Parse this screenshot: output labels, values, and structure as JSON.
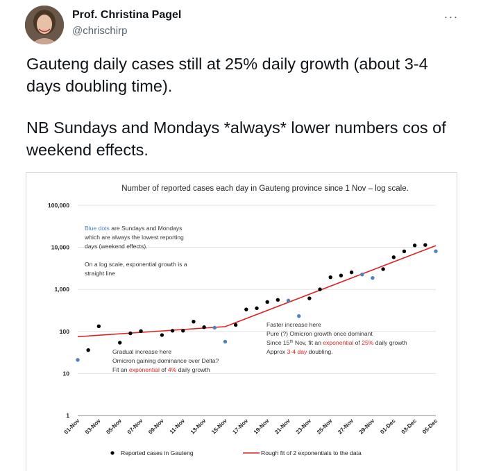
{
  "tweet": {
    "author_name": "Prof. Christina Pagel",
    "author_handle": "@chrischirp",
    "more_label": "···",
    "paragraph_1": "Gauteng daily cases still at 25% daily growth (about 3-4 days doubling time).",
    "paragraph_2": "NB Sundays and Mondays *always* lower numbers cos of weekend effects."
  },
  "colors": {
    "black_dots": "#000000",
    "blue_dots": "#4f81bd",
    "fit_line": "#e02020",
    "accent_text": "#e02020"
  },
  "chart_data": {
    "type": "scatter",
    "title": "Number of reported cases each day in Gauteng province since 1 Nov – log scale.",
    "y_scale": "log",
    "ylim": [
      1,
      100000
    ],
    "y_ticks": [
      "1",
      "10",
      "100",
      "1,000",
      "10,000",
      "100,000"
    ],
    "x_tick_labels": [
      "01-Nov",
      "03-Nov",
      "05-Nov",
      "07-Nov",
      "09-Nov",
      "11-Nov",
      "13-Nov",
      "15-Nov",
      "17-Nov",
      "19-Nov",
      "21-Nov",
      "23-Nov",
      "25-Nov",
      "27-Nov",
      "29-Nov",
      "01-Dec",
      "03-Dec",
      "05-Dec"
    ],
    "x": [
      "01-Nov",
      "02-Nov",
      "03-Nov",
      "04-Nov",
      "05-Nov",
      "06-Nov",
      "07-Nov",
      "08-Nov",
      "09-Nov",
      "10-Nov",
      "11-Nov",
      "12-Nov",
      "13-Nov",
      "14-Nov",
      "15-Nov",
      "16-Nov",
      "17-Nov",
      "18-Nov",
      "19-Nov",
      "20-Nov",
      "21-Nov",
      "22-Nov",
      "23-Nov",
      "24-Nov",
      "25-Nov",
      "26-Nov",
      "27-Nov",
      "28-Nov",
      "29-Nov",
      "30-Nov",
      "01-Dec",
      "02-Dec",
      "03-Dec",
      "04-Dec",
      "05-Dec"
    ],
    "series": [
      {
        "name": "Reported cases in Gauteng",
        "points": [
          {
            "x": "01-Nov",
            "y": 21,
            "weekend": true
          },
          {
            "x": "02-Nov",
            "y": 36,
            "weekend": false
          },
          {
            "x": "03-Nov",
            "y": 133,
            "weekend": false
          },
          {
            "x": "05-Nov",
            "y": 54,
            "weekend": false
          },
          {
            "x": "06-Nov",
            "y": 90,
            "weekend": false
          },
          {
            "x": "07-Nov",
            "y": 102,
            "weekend": false
          },
          {
            "x": "09-Nov",
            "y": 82,
            "weekend": false
          },
          {
            "x": "10-Nov",
            "y": 104,
            "weekend": false
          },
          {
            "x": "11-Nov",
            "y": 104,
            "weekend": false
          },
          {
            "x": "12-Nov",
            "y": 171,
            "weekend": false
          },
          {
            "x": "13-Nov",
            "y": 126,
            "weekend": false
          },
          {
            "x": "14-Nov",
            "y": 123,
            "weekend": true
          },
          {
            "x": "15-Nov",
            "y": 57,
            "weekend": true
          },
          {
            "x": "16-Nov",
            "y": 143,
            "weekend": false
          },
          {
            "x": "17-Nov",
            "y": 334,
            "weekend": false
          },
          {
            "x": "18-Nov",
            "y": 356,
            "weekend": false
          },
          {
            "x": "19-Nov",
            "y": 502,
            "weekend": false
          },
          {
            "x": "20-Nov",
            "y": 563,
            "weekend": false
          },
          {
            "x": "21-Nov",
            "y": 542,
            "weekend": true
          },
          {
            "x": "22-Nov",
            "y": 232,
            "weekend": true
          },
          {
            "x": "23-Nov",
            "y": 613,
            "weekend": false
          },
          {
            "x": "24-Nov",
            "y": 1003,
            "weekend": false
          },
          {
            "x": "25-Nov",
            "y": 1945,
            "weekend": false
          },
          {
            "x": "26-Nov",
            "y": 2141,
            "weekend": false
          },
          {
            "x": "27-Nov",
            "y": 2543,
            "weekend": false
          },
          {
            "x": "28-Nov",
            "y": 2262,
            "weekend": true
          },
          {
            "x": "29-Nov",
            "y": 1875,
            "weekend": true
          },
          {
            "x": "30-Nov",
            "y": 3038,
            "weekend": false
          },
          {
            "x": "01-Dec",
            "y": 5833,
            "weekend": false
          },
          {
            "x": "02-Dec",
            "y": 8044,
            "weekend": false
          },
          {
            "x": "03-Dec",
            "y": 11125,
            "weekend": false
          },
          {
            "x": "04-Dec",
            "y": 11373,
            "weekend": false
          },
          {
            "x": "05-Dec",
            "y": 8090,
            "weekend": true
          }
        ]
      },
      {
        "name": "Rough fit of 2 exponentials to the data",
        "line": [
          {
            "x": "01-Nov",
            "y": 75
          },
          {
            "x": "15-Nov",
            "y": 130
          },
          {
            "x": "05-Dec",
            "y": 11000
          }
        ]
      }
    ],
    "annotations": {
      "blue_note": {
        "line1_blue": "Blue dots",
        "line1_rest": " are Sundays and Mondays",
        "line2": "which are always the lowest reporting",
        "line3": "days (weekend effects)."
      },
      "log_note": {
        "line1": "On a log scale, exponential growth is a",
        "line2": "straight line"
      },
      "gradual_note": {
        "line1": "Gradual increase here",
        "line2": "Omicron gaining dominance over Delta?",
        "line3_a": "Fit an ",
        "line3_b": "exponential",
        "line3_c": " of ",
        "line3_d": "4%",
        "line3_e": " daily growth"
      },
      "faster_note": {
        "line1": "Faster increase here",
        "line2": "Pure (?) Omicron growth once dominant",
        "line3_a": "Since 15",
        "line3_sup": "th",
        "line3_b": " Nov, fit an ",
        "line3_c": "exponential",
        "line3_d": " of ",
        "line3_e": "25%",
        "line3_f": " daily growth",
        "line4_a": "Approx ",
        "line4_b": "3-4 day",
        "line4_c": " doubling."
      }
    },
    "legend": {
      "position": "bottom",
      "items": [
        "Reported cases in Gauteng",
        "Rough fit of 2 exponentials to the data"
      ]
    }
  }
}
